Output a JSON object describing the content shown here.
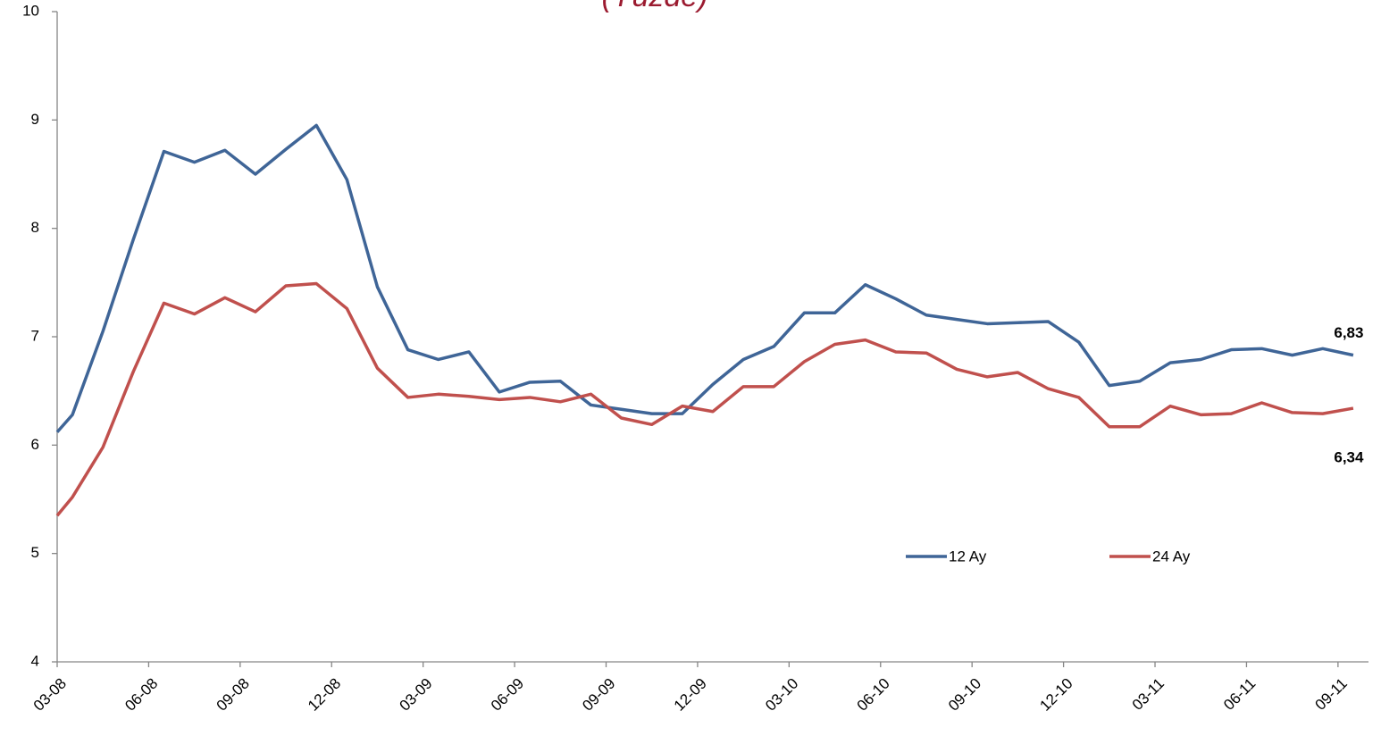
{
  "chart_data": {
    "type": "line",
    "subtitle": "(Yüzde)",
    "x": [
      0,
      0.5,
      1.5,
      2.5,
      3.5,
      4.5,
      5.5,
      6.5,
      7.5,
      8.5,
      9.5,
      10.5,
      11.5,
      12.5,
      13.5,
      14.5,
      15.5,
      16.5,
      17.5,
      18.5,
      19.5,
      20.5,
      21.5,
      22.5,
      23.5,
      24.5,
      25.5,
      26.5,
      27.5,
      28.5,
      29.5,
      30.5,
      31.5,
      32.5,
      33.5,
      34.5,
      35.5,
      36.5,
      37.5,
      38.5,
      39.5,
      40.5,
      41.5,
      42.5
    ],
    "series": [
      {
        "name": "12 Ay",
        "color": "#3f6597",
        "values": [
          6.12,
          6.28,
          7.05,
          7.9,
          8.71,
          8.61,
          8.72,
          8.5,
          8.73,
          8.95,
          8.45,
          7.46,
          6.88,
          6.79,
          6.86,
          6.49,
          6.58,
          6.59,
          6.37,
          6.33,
          6.29,
          6.29,
          6.56,
          6.79,
          6.91,
          7.22,
          7.22,
          7.48,
          7.35,
          7.2,
          7.16,
          7.12,
          7.13,
          7.14,
          6.95,
          6.55,
          6.59,
          6.76,
          6.79,
          6.88,
          6.89,
          6.83,
          6.89,
          6.83
        ],
        "value_labels": [
          null,
          null,
          null,
          null,
          null,
          null,
          null,
          null,
          null,
          null,
          null,
          null,
          null,
          null,
          null,
          null,
          null,
          null,
          null,
          null,
          null,
          null,
          null,
          null,
          null,
          null,
          null,
          null,
          null,
          null,
          null,
          null,
          null,
          null,
          null,
          null,
          null,
          null,
          null,
          null,
          null,
          null,
          null,
          "6,83"
        ]
      },
      {
        "name": "24 Ay",
        "color": "#c0504d",
        "values": [
          5.35,
          5.52,
          5.98,
          6.68,
          7.31,
          7.21,
          7.36,
          7.23,
          7.47,
          7.49,
          7.26,
          6.71,
          6.44,
          6.47,
          6.45,
          6.42,
          6.44,
          6.4,
          6.47,
          6.25,
          6.19,
          6.36,
          6.31,
          6.54,
          6.54,
          6.77,
          6.93,
          6.97,
          6.86,
          6.85,
          6.7,
          6.63,
          6.67,
          6.52,
          6.44,
          6.17,
          6.17,
          6.36,
          6.28,
          6.29,
          6.39,
          6.3,
          6.29,
          6.34
        ],
        "value_labels": [
          null,
          null,
          null,
          null,
          null,
          null,
          null,
          null,
          null,
          null,
          null,
          null,
          null,
          null,
          null,
          null,
          null,
          null,
          null,
          null,
          null,
          null,
          null,
          null,
          null,
          null,
          null,
          null,
          null,
          null,
          null,
          null,
          null,
          null,
          null,
          null,
          null,
          null,
          null,
          null,
          null,
          null,
          null,
          "6,34"
        ]
      }
    ],
    "xlim": [
      0,
      43
    ],
    "xticks": [
      {
        "value": 0,
        "label": "03-08"
      },
      {
        "value": 3,
        "label": "06-08"
      },
      {
        "value": 6,
        "label": "09-08"
      },
      {
        "value": 9,
        "label": "12-08"
      },
      {
        "value": 12,
        "label": "03-09"
      },
      {
        "value": 15,
        "label": "06-09"
      },
      {
        "value": 18,
        "label": "09-09"
      },
      {
        "value": 21,
        "label": "12-09"
      },
      {
        "value": 24,
        "label": "03-10"
      },
      {
        "value": 27,
        "label": "06-10"
      },
      {
        "value": 30,
        "label": "09-10"
      },
      {
        "value": 33,
        "label": "12-10"
      },
      {
        "value": 36,
        "label": "03-11"
      },
      {
        "value": 39,
        "label": "06-11"
      },
      {
        "value": 42,
        "label": "09-11"
      }
    ],
    "ylim": [
      4,
      10
    ],
    "yticks": [
      4,
      5,
      6,
      7,
      8,
      9,
      10
    ],
    "grid": false,
    "legend": "lower right"
  }
}
